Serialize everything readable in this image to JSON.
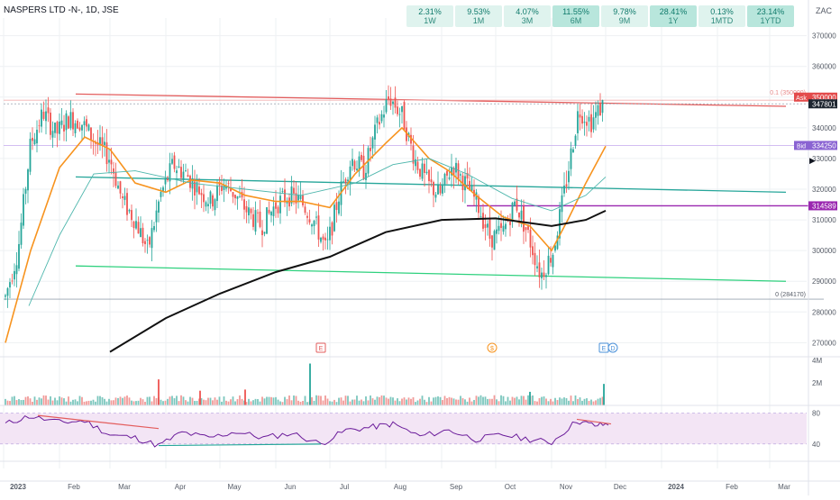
{
  "chart_data": [
    {
      "type": "candlestick",
      "title": "NASPERS LTD -N-, 1D, JSE",
      "currency": "ZAC",
      "x_labels": [
        "2023",
        "Feb",
        "Mar",
        "Apr",
        "May",
        "Jun",
        "Jul",
        "Aug",
        "Sep",
        "Oct",
        "Nov",
        "Dec",
        "2024",
        "Feb",
        "Mar"
      ],
      "y_ticks": [
        270000,
        280000,
        290000,
        300000,
        310000,
        320000,
        330000,
        340000,
        350000,
        360000,
        370000
      ],
      "ylim": [
        266000,
        374000
      ],
      "close_path": [
        {
          "x": "2023-01-02",
          "y": 285000
        },
        {
          "x": "2023-01-09",
          "y": 300000
        },
        {
          "x": "2023-01-16",
          "y": 335000
        },
        {
          "x": "2023-01-23",
          "y": 345000
        },
        {
          "x": "2023-01-30",
          "y": 338000
        },
        {
          "x": "2023-02-06",
          "y": 343000
        },
        {
          "x": "2023-02-13",
          "y": 342000
        },
        {
          "x": "2023-02-20",
          "y": 336000
        },
        {
          "x": "2023-03-01",
          "y": 330000
        },
        {
          "x": "2023-03-08",
          "y": 316000
        },
        {
          "x": "2023-03-15",
          "y": 310000
        },
        {
          "x": "2023-03-22",
          "y": 300000
        },
        {
          "x": "2023-03-29",
          "y": 318000
        },
        {
          "x": "2023-04-05",
          "y": 328000
        },
        {
          "x": "2023-04-12",
          "y": 325000
        },
        {
          "x": "2023-04-19",
          "y": 320000
        },
        {
          "x": "2023-04-26",
          "y": 316000
        },
        {
          "x": "2023-05-03",
          "y": 322000
        },
        {
          "x": "2023-05-10",
          "y": 318000
        },
        {
          "x": "2023-05-17",
          "y": 312000
        },
        {
          "x": "2023-05-24",
          "y": 308000
        },
        {
          "x": "2023-06-01",
          "y": 315000
        },
        {
          "x": "2023-06-08",
          "y": 318000
        },
        {
          "x": "2023-06-15",
          "y": 316000
        },
        {
          "x": "2023-06-22",
          "y": 310000
        },
        {
          "x": "2023-06-29",
          "y": 300000
        },
        {
          "x": "2023-07-06",
          "y": 318000
        },
        {
          "x": "2023-07-13",
          "y": 330000
        },
        {
          "x": "2023-07-20",
          "y": 326000
        },
        {
          "x": "2023-07-27",
          "y": 340000
        },
        {
          "x": "2023-08-03",
          "y": 350000
        },
        {
          "x": "2023-08-10",
          "y": 344000
        },
        {
          "x": "2023-08-17",
          "y": 330000
        },
        {
          "x": "2023-08-24",
          "y": 322000
        },
        {
          "x": "2023-08-31",
          "y": 318000
        },
        {
          "x": "2023-09-07",
          "y": 328000
        },
        {
          "x": "2023-09-14",
          "y": 322000
        },
        {
          "x": "2023-09-21",
          "y": 315000
        },
        {
          "x": "2023-09-28",
          "y": 304000
        },
        {
          "x": "2023-10-05",
          "y": 306000
        },
        {
          "x": "2023-10-12",
          "y": 316000
        },
        {
          "x": "2023-10-19",
          "y": 305000
        },
        {
          "x": "2023-10-26",
          "y": 292000
        },
        {
          "x": "2023-11-02",
          "y": 300000
        },
        {
          "x": "2023-11-09",
          "y": 322000
        },
        {
          "x": "2023-11-16",
          "y": 346000
        },
        {
          "x": "2023-11-23",
          "y": 342000
        },
        {
          "x": "2023-11-30",
          "y": 348000
        }
      ],
      "series": [
        {
          "name": "MA20",
          "color": "#f7931e",
          "points": [
            {
              "x": "2023-01-02",
              "y": 270000
            },
            {
              "x": "2023-01-16",
              "y": 300000
            },
            {
              "x": "2023-02-01",
              "y": 327000
            },
            {
              "x": "2023-02-15",
              "y": 337000
            },
            {
              "x": "2023-03-01",
              "y": 333000
            },
            {
              "x": "2023-03-15",
              "y": 322000
            },
            {
              "x": "2023-04-01",
              "y": 319000
            },
            {
              "x": "2023-04-15",
              "y": 323000
            },
            {
              "x": "2023-05-01",
              "y": 322000
            },
            {
              "x": "2023-05-15",
              "y": 318000
            },
            {
              "x": "2023-06-01",
              "y": 316000
            },
            {
              "x": "2023-06-15",
              "y": 316000
            },
            {
              "x": "2023-07-01",
              "y": 314000
            },
            {
              "x": "2023-07-15",
              "y": 325000
            },
            {
              "x": "2023-08-01",
              "y": 335000
            },
            {
              "x": "2023-08-10",
              "y": 340000
            },
            {
              "x": "2023-08-25",
              "y": 330000
            },
            {
              "x": "2023-09-05",
              "y": 326000
            },
            {
              "x": "2023-09-20",
              "y": 318000
            },
            {
              "x": "2023-10-05",
              "y": 311000
            },
            {
              "x": "2023-10-20",
              "y": 308000
            },
            {
              "x": "2023-11-01",
              "y": 300000
            },
            {
              "x": "2023-11-10",
              "y": 310000
            },
            {
              "x": "2023-11-20",
              "y": 322000
            },
            {
              "x": "2023-12-01",
              "y": 334000
            }
          ]
        },
        {
          "name": "MA50",
          "color": "#4db6ac",
          "points": [
            {
              "x": "2023-01-15",
              "y": 282000
            },
            {
              "x": "2023-02-01",
              "y": 305000
            },
            {
              "x": "2023-02-20",
              "y": 325000
            },
            {
              "x": "2023-03-15",
              "y": 326000
            },
            {
              "x": "2023-04-15",
              "y": 322000
            },
            {
              "x": "2023-05-15",
              "y": 320000
            },
            {
              "x": "2023-06-15",
              "y": 318000
            },
            {
              "x": "2023-07-15",
              "y": 322000
            },
            {
              "x": "2023-08-05",
              "y": 328000
            },
            {
              "x": "2023-08-25",
              "y": 330000
            },
            {
              "x": "2023-09-15",
              "y": 325000
            },
            {
              "x": "2023-10-10",
              "y": 317000
            },
            {
              "x": "2023-11-01",
              "y": 313000
            },
            {
              "x": "2023-11-20",
              "y": 318000
            },
            {
              "x": "2023-12-01",
              "y": 324000
            }
          ]
        },
        {
          "name": "MA200",
          "color": "#111111",
          "points": [
            {
              "x": "2023-03-01",
              "y": 267000
            },
            {
              "x": "2023-04-01",
              "y": 278000
            },
            {
              "x": "2023-05-01",
              "y": 286000
            },
            {
              "x": "2023-06-01",
              "y": 293000
            },
            {
              "x": "2023-07-01",
              "y": 298000
            },
            {
              "x": "2023-08-01",
              "y": 306000
            },
            {
              "x": "2023-09-01",
              "y": 310000
            },
            {
              "x": "2023-10-01",
              "y": 310500
            },
            {
              "x": "2023-11-01",
              "y": 308000
            },
            {
              "x": "2023-11-20",
              "y": 310000
            },
            {
              "x": "2023-12-01",
              "y": 313000
            }
          ]
        }
      ],
      "trendlines": [
        {
          "color": "#e35d5d",
          "points": [
            {
              "x": "2023-02-10",
              "y": 351000
            },
            {
              "x": "2024-03-10",
              "y": 347000
            }
          ]
        },
        {
          "color": "#26a69a",
          "points": [
            {
              "x": "2023-02-10",
              "y": 324000
            },
            {
              "x": "2024-03-10",
              "y": 319000
            }
          ]
        },
        {
          "color": "#2fd17e",
          "points": [
            {
              "x": "2023-02-10",
              "y": 295000
            },
            {
              "x": "2024-03-10",
              "y": 290000
            }
          ]
        },
        {
          "color": "#f2b0b0",
          "points": [
            {
              "x": "2023-01-01",
              "y": 349000
            },
            {
              "x": "2024-03-31",
              "y": 349000
            }
          ]
        },
        {
          "color": "#9aa5b1",
          "points": [
            {
              "x": "2023-01-01",
              "y": 347801
            },
            {
              "x": "2024-03-31",
              "y": 347801
            }
          ]
        },
        {
          "color": "#cdb5f0",
          "points": [
            {
              "x": "2023-01-01",
              "y": 334250
            },
            {
              "x": "2024-03-31",
              "y": 334250
            }
          ]
        },
        {
          "color": "#9a27b0",
          "points": [
            {
              "x": "2023-09-15",
              "y": 314589
            },
            {
              "x": "2024-03-31",
              "y": 314589
            }
          ]
        },
        {
          "color": "#9aa5b1",
          "points": [
            {
              "x": "2023-01-01",
              "y": 284170
            },
            {
              "x": "2024-03-31",
              "y": 284170
            }
          ]
        }
      ],
      "fib_labels": [
        "0.1 (350000)",
        "0 (284170)"
      ],
      "price_tags": [
        {
          "label": "Ask",
          "value": "350000",
          "color": "#e34b4b"
        },
        {
          "label": "",
          "value": "347801",
          "color": "#1e2630"
        },
        {
          "label": "Bid",
          "value": "334250",
          "color": "#8a63d2"
        },
        {
          "label": "",
          "value": "314589",
          "color": "#9a27b0"
        }
      ],
      "event_markers": [
        {
          "x": "2023-06-26",
          "kind": "E",
          "color": "#e35d5d"
        },
        {
          "x": "2023-09-29",
          "kind": "$",
          "color": "#f7931e"
        },
        {
          "x": "2023-11-30",
          "kind": "E",
          "color": "#4a90d9"
        },
        {
          "x": "2023-12-05",
          "kind": "D",
          "color": "#4a90d9"
        }
      ]
    },
    {
      "type": "bar",
      "title": "Volume",
      "y_ticks_labels": [
        "4M",
        "2M"
      ],
      "y_ticks": [
        4000000,
        2000000
      ],
      "ylim": [
        0,
        4300000
      ],
      "baseline": 600000,
      "spikes": [
        {
          "x": "2023-03-28",
          "y": 2300000
        },
        {
          "x": "2023-06-20",
          "y": 3700000
        },
        {
          "x": "2023-05-15",
          "y": 1400000
        },
        {
          "x": "2023-11-30",
          "y": 1900000
        },
        {
          "x": "2023-04-20",
          "y": 1300000
        },
        {
          "x": "2023-10-20",
          "y": 1200000
        }
      ]
    },
    {
      "type": "line",
      "title": "RSI",
      "y_ticks": [
        80,
        40
      ],
      "ylim": [
        20,
        90
      ],
      "band": [
        40,
        80
      ],
      "series": [
        {
          "name": "RSI",
          "color": "#6a1b9a",
          "points": [
            {
              "x": "2023-01-02",
              "y": 66
            },
            {
              "x": "2023-01-15",
              "y": 76
            },
            {
              "x": "2023-02-01",
              "y": 68
            },
            {
              "x": "2023-02-15",
              "y": 70
            },
            {
              "x": "2023-03-01",
              "y": 52
            },
            {
              "x": "2023-03-15",
              "y": 48
            },
            {
              "x": "2023-03-28",
              "y": 38
            },
            {
              "x": "2023-04-10",
              "y": 55
            },
            {
              "x": "2023-04-25",
              "y": 48
            },
            {
              "x": "2023-05-10",
              "y": 56
            },
            {
              "x": "2023-05-25",
              "y": 48
            },
            {
              "x": "2023-06-10",
              "y": 54
            },
            {
              "x": "2023-06-26",
              "y": 40
            },
            {
              "x": "2023-07-10",
              "y": 58
            },
            {
              "x": "2023-07-25",
              "y": 62
            },
            {
              "x": "2023-08-05",
              "y": 66
            },
            {
              "x": "2023-08-20",
              "y": 50
            },
            {
              "x": "2023-09-05",
              "y": 58
            },
            {
              "x": "2023-09-20",
              "y": 46
            },
            {
              "x": "2023-10-05",
              "y": 52
            },
            {
              "x": "2023-10-20",
              "y": 46
            },
            {
              "x": "2023-11-01",
              "y": 42
            },
            {
              "x": "2023-11-15",
              "y": 70
            },
            {
              "x": "2023-11-25",
              "y": 64
            },
            {
              "x": "2023-12-04",
              "y": 66
            }
          ]
        }
      ],
      "divergence_lines": [
        {
          "color": "#e35d5d",
          "points": [
            {
              "x": "2023-01-20",
              "y": 77
            },
            {
              "x": "2023-03-28",
              "y": 60
            }
          ]
        },
        {
          "color": "#26a69a",
          "points": [
            {
              "x": "2023-03-28",
              "y": 38
            },
            {
              "x": "2023-06-26",
              "y": 40
            }
          ]
        },
        {
          "color": "#e35d5d",
          "points": [
            {
              "x": "2023-11-15",
              "y": 72
            },
            {
              "x": "2023-12-04",
              "y": 66
            }
          ]
        }
      ]
    }
  ],
  "performance": [
    {
      "pct": "2.31%",
      "period": "1W",
      "strong": false
    },
    {
      "pct": "9.53%",
      "period": "1M",
      "strong": false
    },
    {
      "pct": "4.07%",
      "period": "3M",
      "strong": false
    },
    {
      "pct": "11.55%",
      "period": "6M",
      "strong": true
    },
    {
      "pct": "9.78%",
      "period": "9M",
      "strong": false
    },
    {
      "pct": "28.41%",
      "period": "1Y",
      "strong": true
    },
    {
      "pct": "0.13%",
      "period": "1MTD",
      "strong": false
    },
    {
      "pct": "23.14%",
      "period": "1YTD",
      "strong": true
    }
  ],
  "colors": {
    "up": "#26a69a",
    "down": "#ef5350",
    "grid": "#eef0f3",
    "axis_text": "#555b66"
  }
}
